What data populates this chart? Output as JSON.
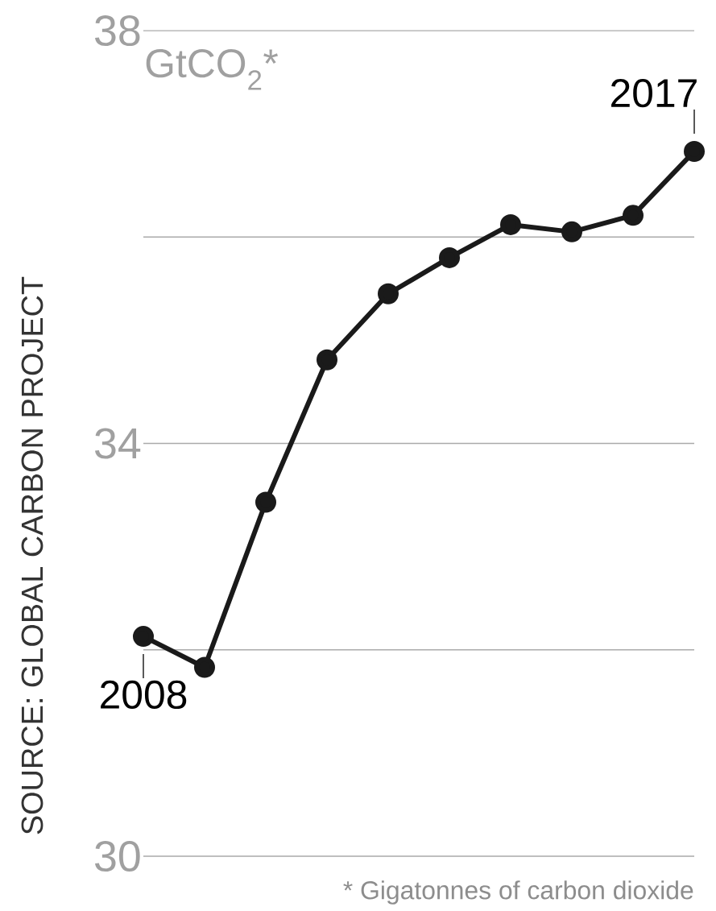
{
  "chart_data": {
    "type": "line",
    "categories": [
      null,
      null,
      null,
      null,
      null,
      null,
      null,
      null,
      null,
      null
    ],
    "series": [
      {
        "color": "#1a1a1a",
        "values": [
          32.13,
          31.83,
          33.43,
          34.81,
          35.45,
          35.8,
          36.12,
          36.05,
          36.21,
          36.83
        ]
      }
    ],
    "ylabel": "GtCO$_{2}$*",
    "ylim": [
      30,
      38
    ],
    "yticks": [
      30,
      {
        "value": 32,
        "label": null
      },
      34,
      {
        "value": 36,
        "label": null
      },
      38
    ],
    "grid": "y",
    "marker": "circle",
    "line_style": "solid",
    "annotations": [
      "2008",
      "2017",
      "SOURCE: GLOBAL CARBON PROJECT",
      "* Gigatonnes of carbon dioxide"
    ]
  }
}
